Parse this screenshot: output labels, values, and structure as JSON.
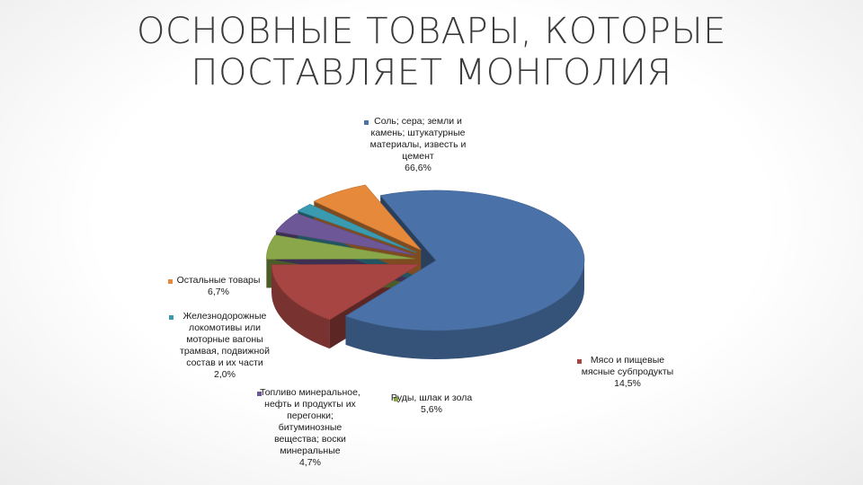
{
  "title": {
    "line1": "ОСНОВНЫЕ ТОВАРЫ, КОТОРЫЕ",
    "line2": "ПОСТАВЛЯЕТ МОНГОЛИЯ"
  },
  "chart_data": {
    "type": "pie",
    "style": "3d-exploded",
    "legend": "labels beside slices",
    "slices": [
      {
        "label_lines": [
          "Соль; сера; земли и",
          "камень; штукатурные",
          "материалы, известь и",
          "цемент"
        ],
        "value_text": "66,6%",
        "value": 66.6,
        "color": "#4a72a8"
      },
      {
        "label_lines": [
          "Мясо и пищевые",
          "мясные субпродукты"
        ],
        "value_text": "14,5%",
        "value": 14.5,
        "color": "#a64542"
      },
      {
        "label_lines": [
          "Руды, шлак и зола"
        ],
        "value_text": "5,6%",
        "value": 5.6,
        "color": "#8aa84a"
      },
      {
        "label_lines": [
          "Топливо минеральное,",
          "нефть и продукты их",
          "перегонки;",
          "битуминозные",
          "вещества; воски",
          "минеральные"
        ],
        "value_text": "4,7%",
        "value": 4.7,
        "color": "#6e5796"
      },
      {
        "label_lines": [
          "Железнодорожные",
          "локомотивы или",
          "моторные вагоны",
          "трамвая, подвижной",
          "состав и их части"
        ],
        "value_text": "2,0%",
        "value": 2.0,
        "color": "#3a9bb0"
      },
      {
        "label_lines": [
          "Остальные товары"
        ],
        "value_text": "6,7%",
        "value": 6.7,
        "color": "#e6893a"
      }
    ]
  }
}
